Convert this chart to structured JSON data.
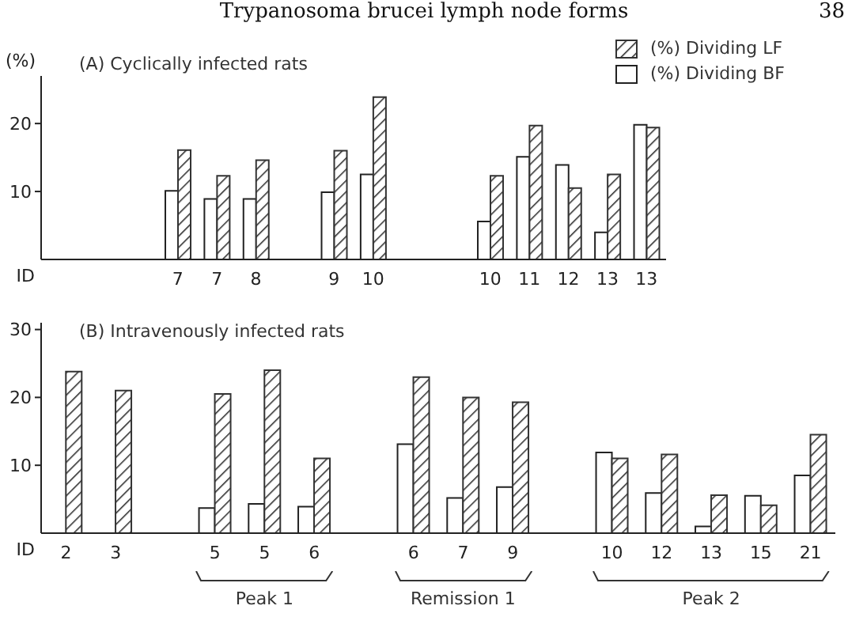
{
  "chart_data": [
    {
      "type": "bar",
      "title": "(A) Cyclically infected rats",
      "ylabel": "(%)",
      "xlabel": "ID",
      "annotations": [
        "Trypanosoma brucei lymph node forms",
        "38"
      ],
      "categories": [
        null,
        null,
        null,
        "7",
        "7",
        "8",
        null,
        "9",
        "10",
        null,
        null,
        "10",
        "11",
        "12",
        "13",
        "13"
      ],
      "series": [
        {
          "name": "(%) Dividing LF",
          "color": "#333333",
          "values": [
            null,
            null,
            null,
            16.1,
            12.3,
            14.6,
            null,
            16.0,
            23.9,
            null,
            null,
            12.3,
            19.7,
            10.5,
            12.5,
            19.4
          ]
        },
        {
          "name": "(%) Dividing BF",
          "color": "#222222",
          "values": [
            null,
            null,
            null,
            10.1,
            8.9,
            8.9,
            null,
            9.9,
            12.5,
            null,
            null,
            5.6,
            15.1,
            13.9,
            4.0,
            19.8
          ]
        }
      ],
      "ylim": [
        0,
        27
      ],
      "yticks": [
        10,
        20
      ],
      "grid": false,
      "legend": "top right"
    },
    {
      "type": "bar",
      "title": "(B) Intravenously infected rats",
      "xlabel": "ID",
      "annotations": [
        "Peak 1",
        "Remission 1",
        "Peak 2"
      ],
      "categories": [
        "2",
        "3",
        null,
        "5",
        "5",
        "6",
        null,
        "6",
        "7",
        "9",
        null,
        "10",
        "12",
        "13",
        "15",
        "21"
      ],
      "series": [
        {
          "color": "#333333",
          "values": [
            23.8,
            21.0,
            null,
            20.5,
            24.0,
            11.0,
            null,
            23.0,
            20.0,
            19.3,
            null,
            11.0,
            11.6,
            5.6,
            4.1,
            14.5
          ]
        },
        {
          "color": "#222222",
          "values": [
            null,
            null,
            null,
            3.7,
            4.3,
            3.9,
            null,
            13.1,
            5.2,
            6.8,
            null,
            11.9,
            5.9,
            1.0,
            5.5,
            8.5
          ]
        }
      ],
      "ylim": [
        0,
        31
      ],
      "yticks": [
        10,
        20,
        30
      ],
      "grid": false
    }
  ]
}
